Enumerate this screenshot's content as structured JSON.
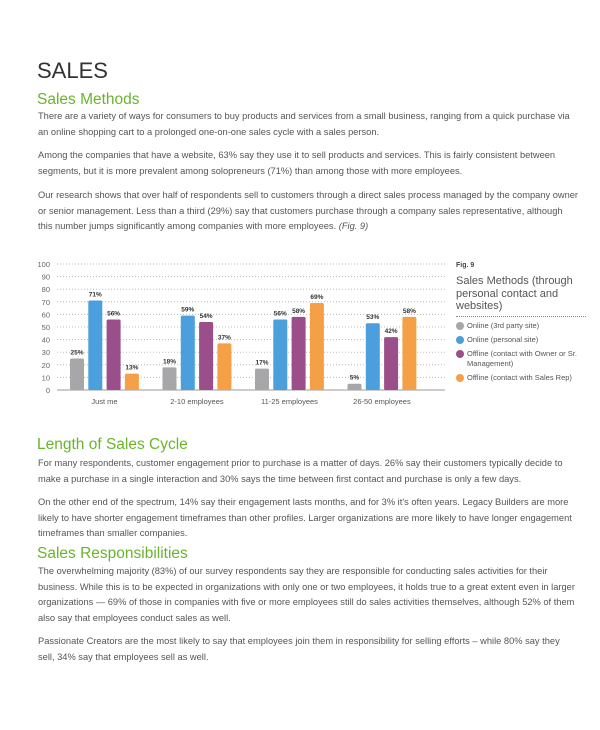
{
  "title": "SALES",
  "sections": [
    {
      "heading": "Sales Methods",
      "paragraphs": [
        "There are a variety of ways for consumers to buy products and services from a small business, ranging from a quick purchase via an online shopping cart to a prolonged one-on-one sales cycle with a sales person.",
        "Among the companies that have a website, 63% say they use it to sell products and services. This is fairly consistent between segments, but it is more prevalent among solopreneurs (71%) than among those with more employees.",
        "Our research shows that over half of respondents sell to customers through a direct sales process managed by the company owner or senior management. Less than a third (29%) say that customers purchase through a company sales representative, although this number jumps significantly among companies with more employees."
      ],
      "fig_ref": "(Fig. 9)"
    },
    {
      "heading": "Length of Sales Cycle",
      "paragraphs": [
        "For many respondents, customer engagement prior to purchase is a matter of days. 26% say their customers typically decide to make a purchase in a single interaction and 30% says the time between first contact and purchase is only a few days.",
        "On the other end of the spectrum, 14% say their engagement lasts months, and for 3% it's often years. Legacy Builders are more likely to have shorter engagement timeframes than other profiles. Larger organizations are more likely to have longer engagement timeframes than smaller companies."
      ]
    },
    {
      "heading": "Sales Responsibilities",
      "paragraphs": [
        "The overwhelming majority (83%) of our survey respondents say they are responsible for conducting sales activities for their business. While this is to be expected in organizations with only one or two employees, it holds true to a great extent even in larger organizations — 69% of those in companies with five or more employees still do sales activities themselves, although 52% of them also say that employees conduct sales as well.",
        "Passionate Creators are the most likely to say that employees join them in responsibility for selling efforts – while 80% say they sell, 34% say that employees sell as well."
      ]
    }
  ],
  "chart_data": {
    "type": "bar",
    "fig_label": "Fig. 9",
    "title": "Sales Methods (through personal contact and websites)",
    "categories": [
      "Just me",
      "2-10 employees",
      "11-25 employees",
      "26-50 employees"
    ],
    "series": [
      {
        "name": "Online (3rd party site)",
        "color": "#a7a7a9",
        "values": [
          25,
          18,
          17,
          5
        ]
      },
      {
        "name": "Online (personal site)",
        "color": "#4a9fdc",
        "values": [
          71,
          59,
          56,
          53
        ]
      },
      {
        "name": "Offline (contact with Owner or Sr. Management)",
        "color": "#9b4f8a",
        "values": [
          56,
          54,
          58,
          42
        ]
      },
      {
        "name": "Offline (contact with Sales Rep)",
        "color": "#f5a046",
        "values": [
          13,
          37,
          69,
          58
        ]
      }
    ],
    "ylim": [
      0,
      100
    ],
    "yticks": [
      0,
      10,
      20,
      30,
      40,
      50,
      60,
      70,
      80,
      90,
      100
    ],
    "value_suffix": "%",
    "grid": true,
    "legend": "right"
  }
}
